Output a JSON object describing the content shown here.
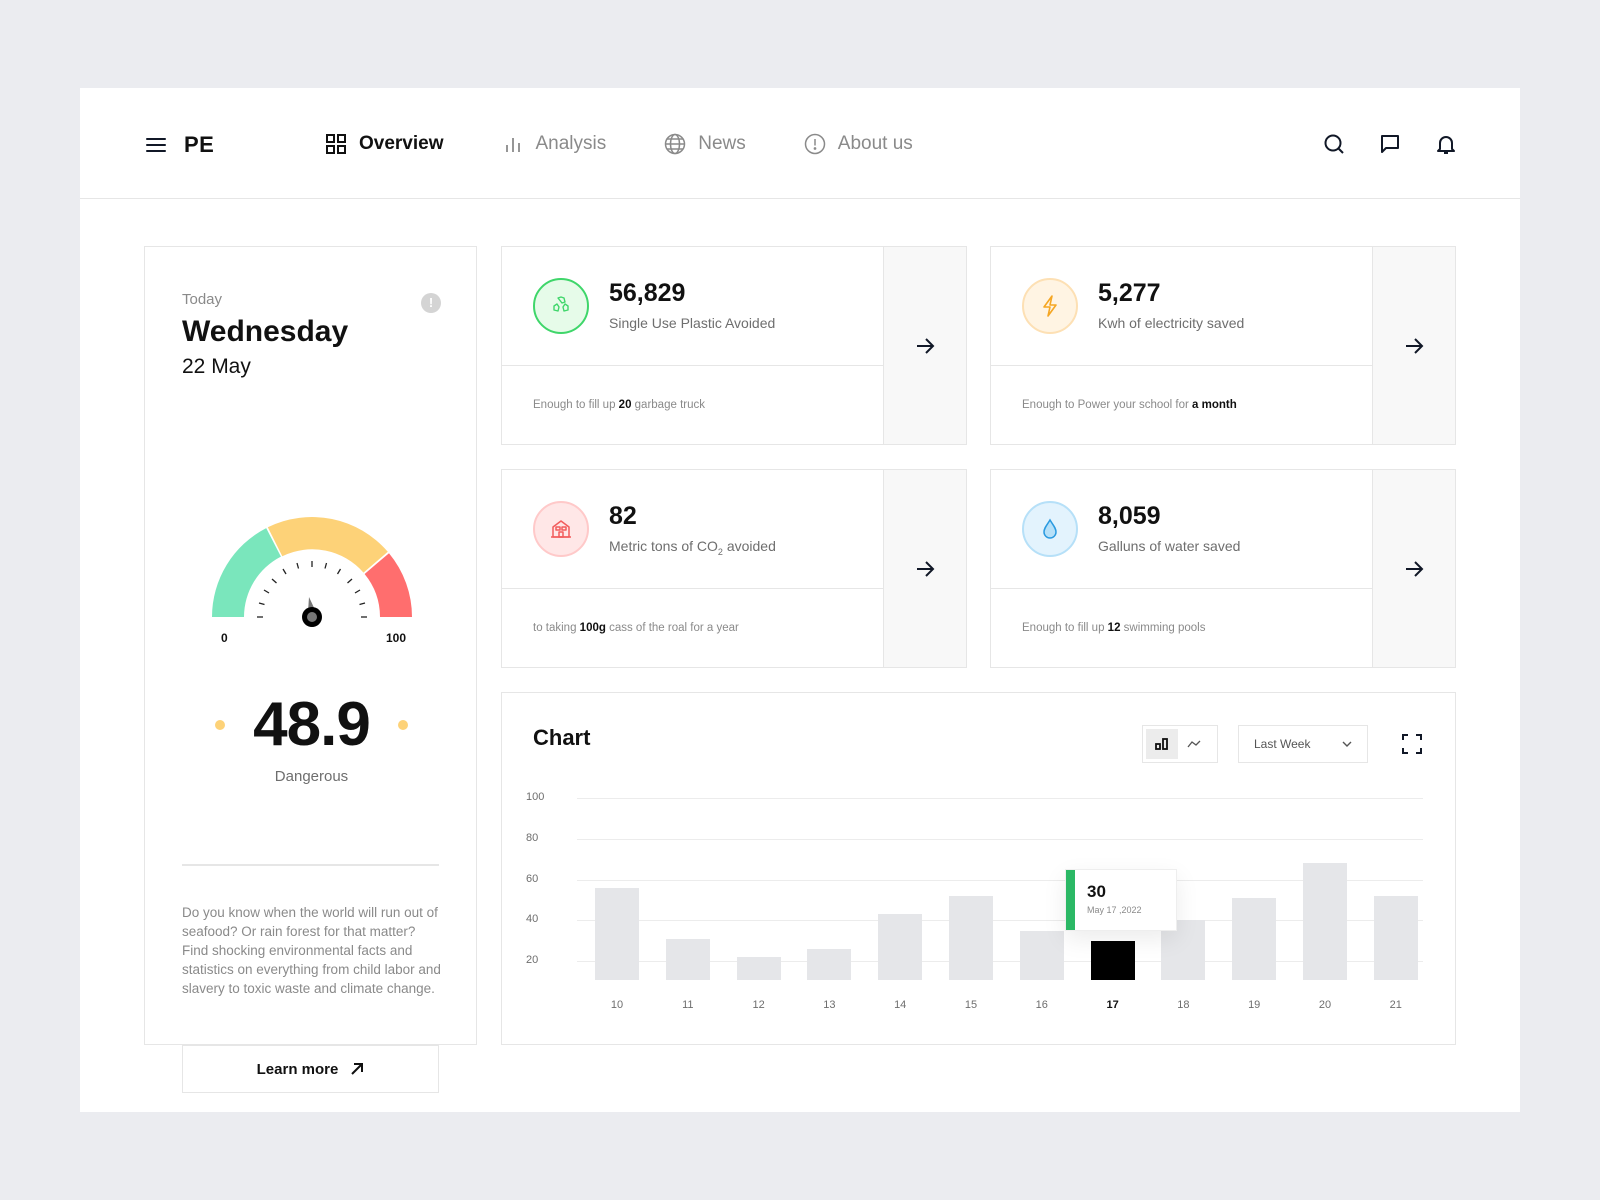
{
  "header": {
    "brand": "PE",
    "nav": [
      {
        "label": "Overview",
        "icon": "grid-icon",
        "active": true
      },
      {
        "label": "Analysis",
        "icon": "bar-chart-icon",
        "active": false
      },
      {
        "label": "News",
        "icon": "globe-icon",
        "active": false
      },
      {
        "label": "About us",
        "icon": "info-circle-icon",
        "active": false
      }
    ],
    "actions": [
      "search-icon",
      "message-icon",
      "bell-icon"
    ]
  },
  "today": {
    "label": "Today",
    "day": "Wednesday",
    "date": "22 May",
    "info_icon": "!",
    "gauge": {
      "min": "0",
      "max": "100",
      "value": 48.9,
      "segments": [
        {
          "color": "#7ae6bc"
        },
        {
          "color": "#fdd278"
        },
        {
          "color": "#ff6e6e"
        }
      ]
    },
    "score": "48.9",
    "status": "Dangerous",
    "blurb": "Do you know when the world will run out of seafood? Or rain forest for that matter? Find shocking environmental facts and statistics on everything from child labor and slavery to toxic waste and climate change.",
    "cta": "Learn more"
  },
  "stats": [
    {
      "value": "56,829",
      "label": "Single Use Plastic Avoided",
      "icon": "recycle-icon",
      "note_pre": "Enough to fill up ",
      "note_bold": "20",
      "note_post": " garbage truck",
      "color": "#3fd66a",
      "bg": "#e6fbe9"
    },
    {
      "value": "5,277",
      "label": "Kwh of electricity saved",
      "icon": "lightning-icon",
      "note_pre": "Enough to Power your school for ",
      "note_bold": "a month",
      "note_post": "",
      "color": "#fde0b4",
      "bg": "#fff4e3"
    },
    {
      "value": "82",
      "label_pre": "Metric tons of CO",
      "label_sub": "2",
      "label_post": " avoided",
      "icon": "house-icon",
      "note_pre": "to taking ",
      "note_bold": "100g",
      "note_post": " cass of the roal for a year",
      "color": "#ffc9c9",
      "bg": "#ffe7e7"
    },
    {
      "value": "8,059",
      "label": "Galluns of water saved",
      "icon": "water-drop-icon",
      "note_pre": "Enough to fill up ",
      "note_bold": "12",
      "note_post": " swimming pools",
      "color": "#b6e0f8",
      "bg": "#e3f3fd"
    }
  ],
  "chart": {
    "title": "Chart",
    "range": "Last Week",
    "tooltip": {
      "value": "30",
      "date": "May 17 ,2022"
    }
  },
  "chart_data": {
    "type": "bar",
    "title": "Chart",
    "categories": [
      "10",
      "11",
      "12",
      "13",
      "14",
      "15",
      "16",
      "17",
      "18",
      "19",
      "20",
      "21"
    ],
    "values": [
      56,
      31,
      22,
      26,
      43,
      52,
      35,
      30,
      40,
      51,
      68,
      52
    ],
    "highlighted": "17",
    "yticks": [
      20,
      40,
      60,
      80,
      100
    ],
    "ylim": [
      0,
      100
    ],
    "xlabel": "",
    "ylabel": "",
    "grid": true
  }
}
